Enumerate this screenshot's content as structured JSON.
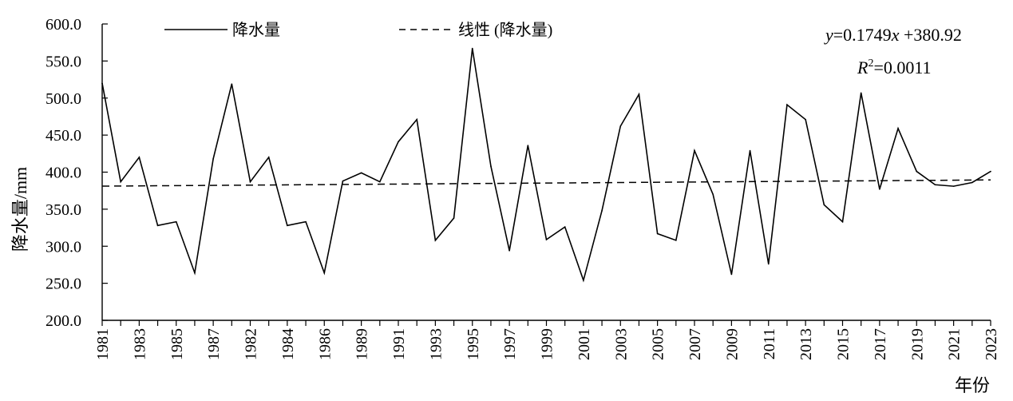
{
  "chart_data": {
    "type": "line",
    "title": "",
    "ylabel": "降水量/mm",
    "xlabel": "年份",
    "ylim": [
      200.0,
      600.0
    ],
    "yticks": [
      "200.0",
      "250.0",
      "300.0",
      "350.0",
      "400.0",
      "450.0",
      "500.0",
      "550.0",
      "600.0"
    ],
    "x": [
      "1981",
      "1982",
      "1983",
      "1984",
      "1985",
      "1986",
      "1987",
      "1988",
      "1982",
      "1983",
      "1984",
      "1985",
      "1986",
      "1987",
      "1989",
      "1990",
      "1991",
      "1992",
      "1993",
      "1994",
      "1995",
      "1996",
      "1997",
      "1998",
      "1999",
      "2000",
      "2001",
      "2002",
      "2003",
      "2004",
      "2005",
      "2006",
      "2007",
      "2008",
      "2009",
      "2010",
      "2011",
      "2012",
      "2013",
      "2014",
      "2015",
      "2016",
      "2017",
      "2018",
      "2019",
      "2020",
      "2021",
      "2022",
      "2023"
    ],
    "x_tick_labels": [
      "1981",
      "1983",
      "1985",
      "1987",
      "1982",
      "1984",
      "1986",
      "1989",
      "1991",
      "1993",
      "1995",
      "1997",
      "1999",
      "2001",
      "2003",
      "2005",
      "2007",
      "2009",
      "2011",
      "2013",
      "2015",
      "2017",
      "2019",
      "2021",
      "2023"
    ],
    "series": [
      {
        "name": "降水量",
        "style": "solid",
        "values": [
          520,
          387,
          420,
          328,
          333,
          264,
          418,
          519,
          387,
          420,
          328,
          333,
          264,
          388,
          399,
          387,
          441,
          471,
          308,
          338,
          567,
          408,
          294,
          436,
          309,
          326,
          254,
          348,
          462,
          505,
          317,
          308,
          429,
          370,
          262,
          429,
          276,
          491,
          471,
          356,
          333,
          507,
          377,
          459,
          401,
          383,
          381,
          386,
          401
        ]
      },
      {
        "name": "线性 (降水量)",
        "style": "dashed",
        "slope": 0.1749,
        "intercept": 380.92
      }
    ],
    "annotations": {
      "equation": {
        "y": "y",
        "eq1": "=0.1749",
        "x": "x",
        "eq2": " +380.92"
      },
      "r2": {
        "R": "R",
        "sup": "2",
        "val": "=0.0011"
      }
    },
    "legend_position": "top",
    "grid": false
  }
}
